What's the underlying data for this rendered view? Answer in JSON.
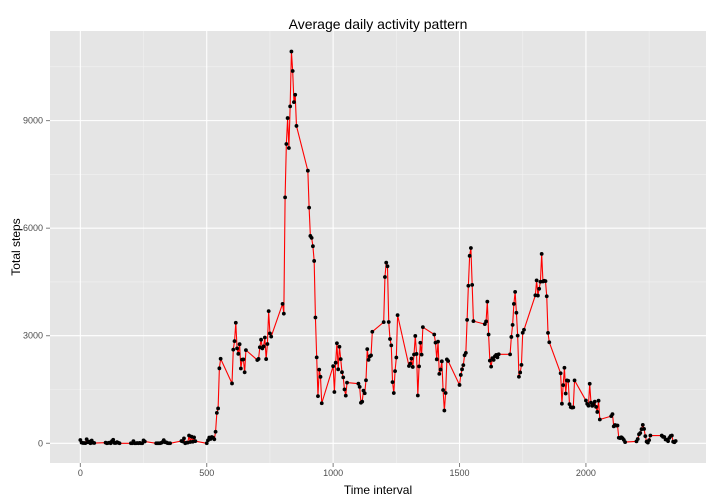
{
  "chart_data": {
    "type": "line",
    "title": "Average daily activity pattern",
    "xlabel": "Time interval",
    "ylabel": "Total steps",
    "xlim": [
      -120,
      2475
    ],
    "ylim": [
      -550,
      11500
    ],
    "x_ticks": [
      0,
      500,
      1000,
      1500,
      2000
    ],
    "y_ticks": [
      0,
      3000,
      6000,
      9000
    ],
    "x_tick_labels": [
      "0",
      "500",
      "1000",
      "1500",
      "2000"
    ],
    "y_tick_labels": [
      "0",
      "3000",
      "6000",
      "9000"
    ],
    "grid": true,
    "colors": {
      "panel": "#e5e5e5",
      "grid_major": "#ffffff",
      "grid_minor": "#f2f2f2",
      "line": "#ff0000",
      "point": "#000000"
    },
    "series": [
      {
        "points": [
          [
            0,
            91
          ],
          [
            5,
            18
          ],
          [
            10,
            7
          ],
          [
            15,
            8
          ],
          [
            20,
            4
          ],
          [
            25,
            111
          ],
          [
            30,
            28
          ],
          [
            35,
            46
          ],
          [
            40,
            0
          ],
          [
            45,
            78
          ],
          [
            50,
            16
          ],
          [
            55,
            7
          ],
          [
            100,
            17
          ],
          [
            105,
            0
          ],
          [
            110,
            8
          ],
          [
            115,
            18
          ],
          [
            120,
            0
          ],
          [
            125,
            59
          ],
          [
            130,
            97
          ],
          [
            135,
            9
          ],
          [
            140,
            7
          ],
          [
            145,
            31
          ],
          [
            150,
            15
          ],
          [
            155,
            0
          ],
          [
            200,
            0
          ],
          [
            205,
            0
          ],
          [
            210,
            60
          ],
          [
            215,
            0
          ],
          [
            220,
            0
          ],
          [
            225,
            7
          ],
          [
            230,
            0
          ],
          [
            235,
            12
          ],
          [
            240,
            0
          ],
          [
            245,
            0
          ],
          [
            250,
            82
          ],
          [
            255,
            50
          ],
          [
            300,
            0
          ],
          [
            305,
            0
          ],
          [
            310,
            0
          ],
          [
            315,
            0
          ],
          [
            320,
            11
          ],
          [
            325,
            33
          ],
          [
            330,
            86
          ],
          [
            335,
            31
          ],
          [
            340,
            26
          ],
          [
            345,
            4
          ],
          [
            350,
            0
          ],
          [
            355,
            0
          ],
          [
            400,
            63
          ],
          [
            405,
            50
          ],
          [
            410,
            136
          ],
          [
            415,
            0
          ],
          [
            420,
            18
          ],
          [
            425,
            19
          ],
          [
            430,
            218
          ],
          [
            435,
            35
          ],
          [
            440,
            185
          ],
          [
            445,
            44
          ],
          [
            450,
            165
          ],
          [
            455,
            59
          ],
          [
            500,
            0
          ],
          [
            505,
            83
          ],
          [
            510,
            159
          ],
          [
            515,
            119
          ],
          [
            520,
            176
          ],
          [
            525,
            157
          ],
          [
            530,
            111
          ],
          [
            535,
            321
          ],
          [
            540,
            849
          ],
          [
            545,
            972
          ],
          [
            550,
            2091
          ],
          [
            555,
            2358
          ],
          [
            600,
            1669
          ],
          [
            605,
            2611
          ],
          [
            610,
            2850
          ],
          [
            615,
            3363
          ],
          [
            620,
            2648
          ],
          [
            625,
            2495
          ],
          [
            630,
            2764
          ],
          [
            635,
            2085
          ],
          [
            640,
            2333
          ],
          [
            645,
            2341
          ],
          [
            650,
            1980
          ],
          [
            655,
            2599
          ],
          [
            700,
            2322
          ],
          [
            705,
            2352
          ],
          [
            710,
            2677
          ],
          [
            715,
            2889
          ],
          [
            720,
            2646
          ],
          [
            725,
            2702
          ],
          [
            730,
            2951
          ],
          [
            735,
            2349
          ],
          [
            740,
            2770
          ],
          [
            745,
            3686
          ],
          [
            750,
            3066
          ],
          [
            755,
            2976
          ],
          [
            800,
            3889
          ],
          [
            805,
            3615
          ],
          [
            810,
            6860
          ],
          [
            815,
            8349
          ],
          [
            820,
            9071
          ],
          [
            825,
            8236
          ],
          [
            830,
            9397
          ],
          [
            835,
            10927
          ],
          [
            840,
            10384
          ],
          [
            845,
            9517
          ],
          [
            850,
            9720
          ],
          [
            855,
            8852
          ],
          [
            900,
            7603
          ],
          [
            905,
            6574
          ],
          [
            910,
            5783
          ],
          [
            915,
            5730
          ],
          [
            920,
            5497
          ],
          [
            925,
            5086
          ],
          [
            930,
            3509
          ],
          [
            935,
            2397
          ],
          [
            940,
            1314
          ],
          [
            945,
            2054
          ],
          [
            950,
            1854
          ],
          [
            955,
            1116
          ],
          [
            1000,
            2150
          ],
          [
            1005,
            1430
          ],
          [
            1010,
            2248
          ],
          [
            1015,
            2791
          ],
          [
            1020,
            2063
          ],
          [
            1025,
            2692
          ],
          [
            1030,
            2347
          ],
          [
            1035,
            1983
          ],
          [
            1040,
            1839
          ],
          [
            1045,
            1502
          ],
          [
            1050,
            1330
          ],
          [
            1055,
            1693
          ],
          [
            1100,
            1662
          ],
          [
            1105,
            1573
          ],
          [
            1110,
            1130
          ],
          [
            1115,
            1162
          ],
          [
            1120,
            1469
          ],
          [
            1125,
            1395
          ],
          [
            1130,
            1758
          ],
          [
            1135,
            2626
          ],
          [
            1140,
            2326
          ],
          [
            1145,
            2422
          ],
          [
            1150,
            2453
          ],
          [
            1155,
            3112
          ],
          [
            1200,
            3380
          ],
          [
            1205,
            4638
          ],
          [
            1210,
            5040
          ],
          [
            1215,
            4937
          ],
          [
            1220,
            3383
          ],
          [
            1225,
            2908
          ],
          [
            1230,
            2732
          ],
          [
            1235,
            1707
          ],
          [
            1240,
            1401
          ],
          [
            1245,
            2012
          ],
          [
            1250,
            2391
          ],
          [
            1255,
            3574
          ],
          [
            1300,
            2155
          ],
          [
            1305,
            2222
          ],
          [
            1310,
            2363
          ],
          [
            1315,
            2129
          ],
          [
            1320,
            2476
          ],
          [
            1325,
            2994
          ],
          [
            1330,
            2492
          ],
          [
            1335,
            1332
          ],
          [
            1340,
            2144
          ],
          [
            1345,
            2804
          ],
          [
            1350,
            2473
          ],
          [
            1355,
            3239
          ],
          [
            1400,
            3035
          ],
          [
            1405,
            2807
          ],
          [
            1410,
            2342
          ],
          [
            1415,
            2834
          ],
          [
            1420,
            1935
          ],
          [
            1425,
            2056
          ],
          [
            1430,
            2286
          ],
          [
            1435,
            1485
          ],
          [
            1440,
            913
          ],
          [
            1445,
            1403
          ],
          [
            1450,
            2339
          ],
          [
            1455,
            2296
          ],
          [
            1500,
            1627
          ],
          [
            1505,
            1906
          ],
          [
            1510,
            2063
          ],
          [
            1515,
            2181
          ],
          [
            1520,
            2454
          ],
          [
            1525,
            2522
          ],
          [
            1530,
            3443
          ],
          [
            1535,
            4395
          ],
          [
            1540,
            5229
          ],
          [
            1545,
            5447
          ],
          [
            1550,
            4418
          ],
          [
            1555,
            3407
          ],
          [
            1600,
            3324
          ],
          [
            1605,
            3398
          ],
          [
            1610,
            3951
          ],
          [
            1615,
            3033
          ],
          [
            1620,
            2305
          ],
          [
            1625,
            2138
          ],
          [
            1630,
            2374
          ],
          [
            1635,
            2325
          ],
          [
            1640,
            2428
          ],
          [
            1645,
            2466
          ],
          [
            1650,
            2397
          ],
          [
            1655,
            2482
          ],
          [
            1700,
            2481
          ],
          [
            1705,
            2966
          ],
          [
            1710,
            3302
          ],
          [
            1715,
            3887
          ],
          [
            1720,
            4224
          ],
          [
            1725,
            3641
          ],
          [
            1730,
            3002
          ],
          [
            1735,
            1855
          ],
          [
            1740,
            1976
          ],
          [
            1745,
            2186
          ],
          [
            1750,
            3082
          ],
          [
            1755,
            3166
          ],
          [
            1800,
            4128
          ],
          [
            1805,
            4545
          ],
          [
            1810,
            4120
          ],
          [
            1815,
            4309
          ],
          [
            1820,
            4505
          ],
          [
            1825,
            5283
          ],
          [
            1830,
            4514
          ],
          [
            1835,
            4533
          ],
          [
            1840,
            4524
          ],
          [
            1845,
            4100
          ],
          [
            1850,
            3080
          ],
          [
            1855,
            2819
          ],
          [
            1900,
            1952
          ],
          [
            1905,
            1104
          ],
          [
            1910,
            1621
          ],
          [
            1915,
            2107
          ],
          [
            1920,
            1387
          ],
          [
            1925,
            1754
          ],
          [
            1930,
            1744
          ],
          [
            1935,
            1092
          ],
          [
            1940,
            1007
          ],
          [
            1945,
            996
          ],
          [
            1950,
            1002
          ],
          [
            1955,
            1755
          ],
          [
            2000,
            1192
          ],
          [
            2005,
            1098
          ],
          [
            2010,
            1048
          ],
          [
            2015,
            1659
          ],
          [
            2020,
            1132
          ],
          [
            2025,
            1045
          ],
          [
            2030,
            1090
          ],
          [
            2035,
            1161
          ],
          [
            2040,
            1015
          ],
          [
            2045,
            874
          ],
          [
            2050,
            1188
          ],
          [
            2055,
            663
          ],
          [
            2100,
            758
          ],
          [
            2105,
            813
          ],
          [
            2110,
            472
          ],
          [
            2115,
            510
          ],
          [
            2120,
            495
          ],
          [
            2125,
            496
          ],
          [
            2130,
            154
          ],
          [
            2135,
            144
          ],
          [
            2140,
            168
          ],
          [
            2145,
            140
          ],
          [
            2150,
            95
          ],
          [
            2155,
            33
          ],
          [
            2200,
            53
          ],
          [
            2205,
            120
          ],
          [
            2210,
            250
          ],
          [
            2215,
            285
          ],
          [
            2220,
            393
          ],
          [
            2225,
            512
          ],
          [
            2230,
            400
          ],
          [
            2235,
            199
          ],
          [
            2240,
            47
          ],
          [
            2245,
            19
          ],
          [
            2250,
            88
          ],
          [
            2255,
            217
          ],
          [
            2300,
            215
          ],
          [
            2305,
            180
          ],
          [
            2310,
            174
          ],
          [
            2315,
            106
          ],
          [
            2320,
            98
          ],
          [
            2325,
            59
          ],
          [
            2330,
            150
          ],
          [
            2335,
            203
          ],
          [
            2340,
            216
          ],
          [
            2345,
            44
          ],
          [
            2350,
            28
          ],
          [
            2355,
            64
          ]
        ]
      }
    ]
  }
}
